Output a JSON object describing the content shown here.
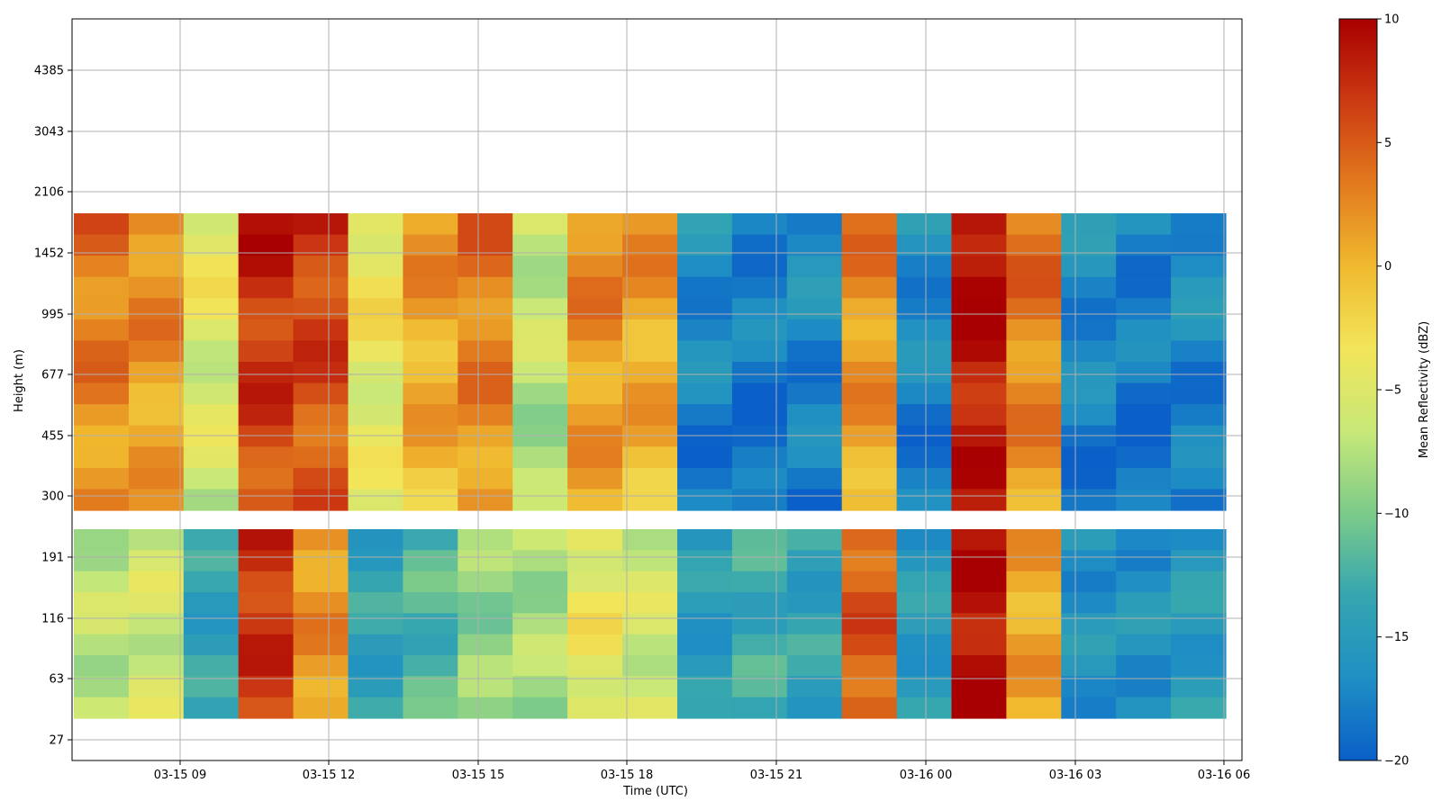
{
  "chart_data": {
    "type": "heatmap",
    "xlabel": "Time (UTC)",
    "ylabel": "Height (m)",
    "x_ticks": [
      "03-15 09",
      "03-15 12",
      "03-15 15",
      "03-15 18",
      "03-15 21",
      "03-16 00",
      "03-16 03",
      "03-16 06"
    ],
    "y_ticks": [
      "27",
      "63",
      "116",
      "191",
      "300",
      "455",
      "677",
      "995",
      "1452",
      "2106",
      "3043",
      "4385"
    ],
    "grid": true,
    "colorbar": {
      "label": "Mean Reflectivity (dBZ)",
      "ticks": [
        "−20",
        "−15",
        "−10",
        "−5",
        "0",
        "5",
        "10"
      ],
      "vmin": -20,
      "vmax": 10,
      "colormap": [
        "#0a5fc8",
        "#1f8fc4",
        "#35a6b0",
        "#7ccb8a",
        "#c8e878",
        "#f2e55a",
        "#f0b92e",
        "#e27a1e",
        "#cc3a12",
        "#a80000"
      ]
    },
    "time_columns": [
      {
        "t": "03-15 09",
        "upper_dbz": 4,
        "lower_dbz": -7
      },
      {
        "t": "03-15 10",
        "upper_dbz": 3,
        "lower_dbz": -6
      },
      {
        "t": "03-15 11",
        "upper_dbz": -4,
        "lower_dbz": -14
      },
      {
        "t": "03-15 12",
        "upper_dbz": 8,
        "lower_dbz": 7
      },
      {
        "t": "03-15 13",
        "upper_dbz": 7,
        "lower_dbz": 2
      },
      {
        "t": "03-15 14",
        "upper_dbz": -3,
        "lower_dbz": -14
      },
      {
        "t": "03-15 15",
        "upper_dbz": 2,
        "lower_dbz": -12
      },
      {
        "t": "03-15 16",
        "upper_dbz": 4,
        "lower_dbz": -9
      },
      {
        "t": "03-15 17",
        "upper_dbz": -6,
        "lower_dbz": -8
      },
      {
        "t": "03-15 18",
        "upper_dbz": 3,
        "lower_dbz": -4
      },
      {
        "t": "03-15 19",
        "upper_dbz": 2,
        "lower_dbz": -6
      },
      {
        "t": "03-15 20",
        "upper_dbz": -16,
        "lower_dbz": -15
      },
      {
        "t": "03-15 21",
        "upper_dbz": -17,
        "lower_dbz": -13
      },
      {
        "t": "03-15 22",
        "upper_dbz": -16,
        "lower_dbz": -14
      },
      {
        "t": "03-15 23",
        "upper_dbz": 3,
        "lower_dbz": 5
      },
      {
        "t": "03-16 00",
        "upper_dbz": -16,
        "lower_dbz": -15
      },
      {
        "t": "03-16 01",
        "upper_dbz": 10,
        "lower_dbz": 9
      },
      {
        "t": "03-16 02",
        "upper_dbz": 4,
        "lower_dbz": 1
      },
      {
        "t": "03-16 03",
        "upper_dbz": -16,
        "lower_dbz": -16
      },
      {
        "t": "03-16 04",
        "upper_dbz": -17,
        "lower_dbz": -16
      },
      {
        "t": "03-16 05",
        "upper_dbz": -16,
        "lower_dbz": -15
      }
    ]
  }
}
